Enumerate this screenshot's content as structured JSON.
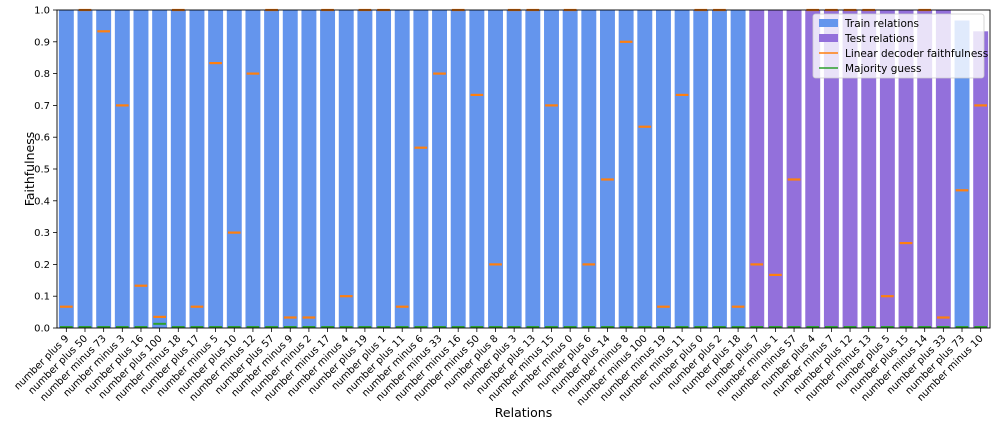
{
  "chart_data": {
    "type": "bar",
    "xlabel": "Relations",
    "ylabel": "Faithfulness",
    "ylim": [
      0,
      1
    ],
    "yticks": [
      "0.0",
      "0.1",
      "0.2",
      "0.3",
      "0.4",
      "0.5",
      "0.6",
      "0.7",
      "0.8",
      "0.9",
      "1.0"
    ],
    "grid": false,
    "legend_position": "top-right",
    "categories": [
      "number plus 9",
      "number plus 50",
      "number minus 73",
      "number minus 3",
      "number plus 16",
      "number plus 100",
      "number minus 18",
      "number plus 17",
      "number minus 5",
      "number plus 10",
      "number minus 12",
      "number plus 57",
      "number minus 9",
      "number minus 2",
      "number minus 17",
      "number minus 4",
      "number plus 19",
      "number plus 1",
      "number plus 11",
      "number minus 6",
      "number minus 33",
      "number minus 16",
      "number minus 50",
      "number plus 8",
      "number plus 3",
      "number plus 13",
      "number minus 15",
      "number minus 0",
      "number plus 6",
      "number plus 14",
      "number minus 8",
      "number minus 100",
      "number minus 19",
      "number minus 11",
      "number plus 0",
      "number plus 2",
      "number plus 18",
      "number plus 7",
      "number minus 1",
      "number minus 57",
      "number plus 4",
      "number minus 7",
      "number plus 12",
      "number minus 13",
      "number plus 5",
      "number plus 15",
      "number minus 14",
      "number plus 33",
      "number plus 73",
      "number minus 10"
    ],
    "groups": [
      "train",
      "train",
      "train",
      "train",
      "train",
      "train",
      "train",
      "train",
      "train",
      "train",
      "train",
      "train",
      "train",
      "train",
      "train",
      "train",
      "train",
      "train",
      "train",
      "train",
      "train",
      "train",
      "train",
      "train",
      "train",
      "train",
      "train",
      "train",
      "train",
      "train",
      "train",
      "train",
      "train",
      "train",
      "train",
      "train",
      "train",
      "test",
      "test",
      "test",
      "test",
      "test",
      "test",
      "test",
      "test",
      "test",
      "test",
      "test",
      "train",
      "test"
    ],
    "series": [
      {
        "name": "Train relations",
        "color": "#6495ED",
        "kind": "bar"
      },
      {
        "name": "Test relations",
        "color": "#9370DB",
        "kind": "bar"
      },
      {
        "name": "Linear decoder faithfulness",
        "color": "#ff7f0e",
        "kind": "marker",
        "values": [
          0.067,
          1.0,
          0.933,
          0.7,
          0.133,
          0.035,
          1.0,
          0.067,
          0.833,
          0.3,
          0.8,
          1.0,
          0.033,
          0.033,
          1.0,
          0.1,
          1.0,
          1.0,
          0.067,
          0.567,
          0.8,
          1.0,
          0.733,
          0.2,
          1.0,
          1.0,
          0.7,
          1.0,
          0.2,
          0.467,
          0.9,
          0.633,
          0.067,
          0.733,
          1.0,
          1.0,
          0.067,
          0.2,
          0.167,
          0.467,
          1.0,
          1.0,
          1.0,
          1.0,
          0.1,
          0.267,
          1.0,
          0.033,
          0.433,
          0.7
        ]
      },
      {
        "name": "Majority guess",
        "color": "#2ca02c",
        "kind": "marker",
        "values": [
          0,
          0,
          0,
          0,
          0,
          0.01,
          0,
          0,
          0,
          0,
          0,
          0,
          0,
          0,
          0,
          0,
          0,
          0,
          0,
          0,
          0,
          0,
          0,
          0,
          0,
          0,
          0,
          0,
          0,
          0,
          0,
          0,
          0,
          0,
          0,
          0,
          0,
          0,
          0,
          0,
          0,
          0,
          0,
          0,
          0,
          0,
          0,
          0,
          0,
          0
        ]
      }
    ],
    "bar_values": [
      1.0,
      1.0,
      1.0,
      1.0,
      1.0,
      1.0,
      1.0,
      1.0,
      1.0,
      1.0,
      1.0,
      1.0,
      1.0,
      1.0,
      1.0,
      1.0,
      1.0,
      1.0,
      1.0,
      1.0,
      1.0,
      1.0,
      1.0,
      1.0,
      1.0,
      1.0,
      1.0,
      1.0,
      1.0,
      1.0,
      1.0,
      1.0,
      1.0,
      1.0,
      1.0,
      1.0,
      1.0,
      1.0,
      1.0,
      1.0,
      1.0,
      1.0,
      1.0,
      1.0,
      1.0,
      1.0,
      1.0,
      1.0,
      0.967,
      0.933
    ]
  }
}
